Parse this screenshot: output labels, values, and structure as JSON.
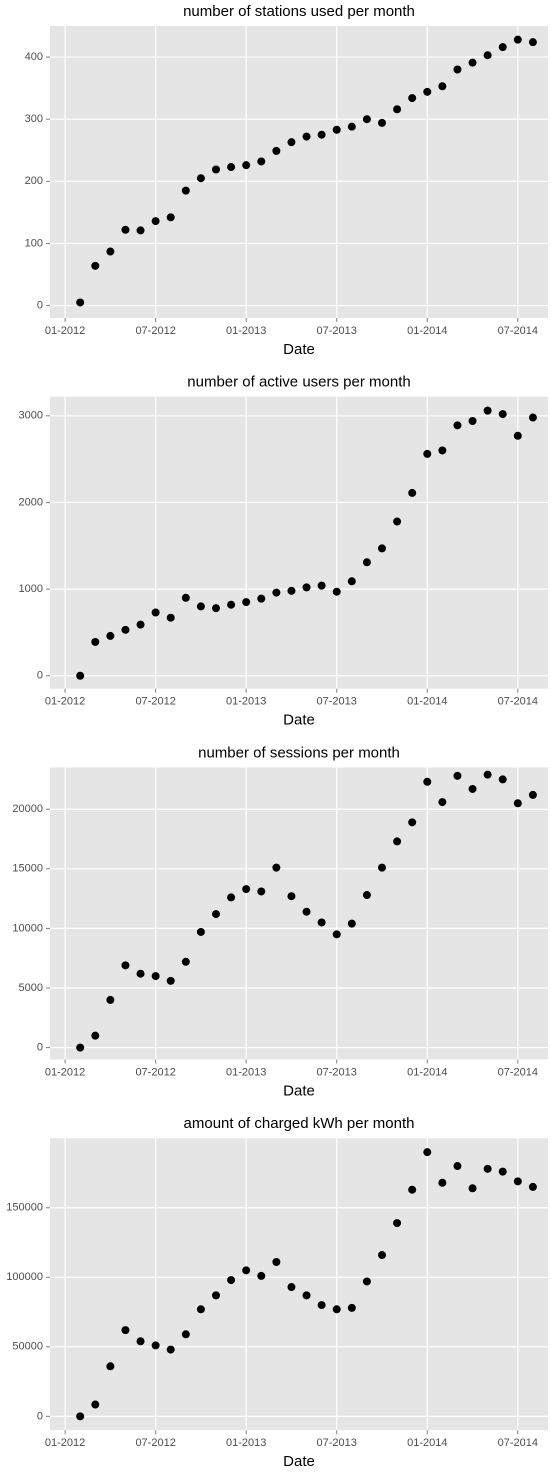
{
  "chart_data": [
    {
      "type": "scatter",
      "title": "number of stations used per month",
      "x_label": "Date",
      "x": [
        "2012-02",
        "2012-03",
        "2012-04",
        "2012-05",
        "2012-06",
        "2012-07",
        "2012-08",
        "2012-09",
        "2012-10",
        "2012-11",
        "2012-12",
        "2013-01",
        "2013-02",
        "2013-03",
        "2013-04",
        "2013-05",
        "2013-06",
        "2013-07",
        "2013-08",
        "2013-09",
        "2013-10",
        "2013-11",
        "2013-12",
        "2014-01",
        "2014-02",
        "2014-03",
        "2014-04",
        "2014-05",
        "2014-06",
        "2014-07",
        "2014-08"
      ],
      "values": [
        5,
        64,
        87,
        122,
        121,
        136,
        142,
        185,
        205,
        219,
        223,
        226,
        232,
        249,
        263,
        272,
        275,
        283,
        288,
        300,
        294,
        316,
        334,
        344,
        353,
        380,
        391,
        403,
        416,
        428,
        424
      ],
      "color": "#000000",
      "xlim": [
        "2011-12",
        "2014-09"
      ],
      "xticks": [
        {
          "value": "2012-01",
          "label": "01-2012"
        },
        {
          "value": "2012-07",
          "label": "07-2012"
        },
        {
          "value": "2013-01",
          "label": "01-2013"
        },
        {
          "value": "2013-07",
          "label": "07-2013"
        },
        {
          "value": "2014-01",
          "label": "01-2014"
        },
        {
          "value": "2014-07",
          "label": "07-2014"
        }
      ],
      "ylim": [
        -20,
        450
      ],
      "yticks": [
        0,
        100,
        200,
        300,
        400
      ],
      "grid": true
    },
    {
      "type": "scatter",
      "title": "number of active users per month",
      "x_label": "Date",
      "x": [
        "2012-02",
        "2012-03",
        "2012-04",
        "2012-05",
        "2012-06",
        "2012-07",
        "2012-08",
        "2012-09",
        "2012-10",
        "2012-11",
        "2012-12",
        "2013-01",
        "2013-02",
        "2013-03",
        "2013-04",
        "2013-05",
        "2013-06",
        "2013-07",
        "2013-08",
        "2013-09",
        "2013-10",
        "2013-11",
        "2013-12",
        "2014-01",
        "2014-02",
        "2014-03",
        "2014-04",
        "2014-05",
        "2014-06",
        "2014-07",
        "2014-08"
      ],
      "values": [
        0,
        390,
        460,
        530,
        590,
        730,
        670,
        900,
        800,
        780,
        820,
        850,
        890,
        960,
        980,
        1020,
        1040,
        970,
        1090,
        1310,
        1470,
        1780,
        2110,
        2560,
        2600,
        2890,
        2940,
        3060,
        3020,
        2770,
        2980
      ],
      "color": "#000000",
      "xlim": [
        "2011-12",
        "2014-09"
      ],
      "xticks": [
        {
          "value": "2012-01",
          "label": "01-2012"
        },
        {
          "value": "2012-07",
          "label": "07-2012"
        },
        {
          "value": "2013-01",
          "label": "01-2013"
        },
        {
          "value": "2013-07",
          "label": "07-2013"
        },
        {
          "value": "2014-01",
          "label": "01-2014"
        },
        {
          "value": "2014-07",
          "label": "07-2014"
        }
      ],
      "ylim": [
        -150,
        3220
      ],
      "yticks": [
        0,
        1000,
        2000,
        3000
      ],
      "grid": true
    },
    {
      "type": "scatter",
      "title": "number of sessions per month",
      "x_label": "Date",
      "x": [
        "2012-02",
        "2012-03",
        "2012-04",
        "2012-05",
        "2012-06",
        "2012-07",
        "2012-08",
        "2012-09",
        "2012-10",
        "2012-11",
        "2012-12",
        "2013-01",
        "2013-02",
        "2013-03",
        "2013-04",
        "2013-05",
        "2013-06",
        "2013-07",
        "2013-08",
        "2013-09",
        "2013-10",
        "2013-11",
        "2013-12",
        "2014-01",
        "2014-02",
        "2014-03",
        "2014-04",
        "2014-05",
        "2014-06",
        "2014-07",
        "2014-08"
      ],
      "values": [
        0,
        1000,
        4000,
        6900,
        6200,
        6000,
        5600,
        7200,
        9700,
        11200,
        12600,
        13300,
        13100,
        15100,
        12700,
        11400,
        10500,
        9500,
        10400,
        12800,
        15100,
        17300,
        18900,
        22300,
        20600,
        22800,
        21700,
        22900,
        22500,
        20500,
        21200
      ],
      "color": "#000000",
      "xlim": [
        "2011-12",
        "2014-09"
      ],
      "xticks": [
        {
          "value": "2012-01",
          "label": "01-2012"
        },
        {
          "value": "2012-07",
          "label": "07-2012"
        },
        {
          "value": "2013-01",
          "label": "01-2013"
        },
        {
          "value": "2013-07",
          "label": "07-2013"
        },
        {
          "value": "2014-01",
          "label": "01-2014"
        },
        {
          "value": "2014-07",
          "label": "07-2014"
        }
      ],
      "ylim": [
        -1000,
        23500
      ],
      "yticks": [
        0,
        5000,
        10000,
        15000,
        20000
      ],
      "grid": true
    },
    {
      "type": "scatter",
      "title": "amount of charged kWh per month",
      "x_label": "Date",
      "x": [
        "2012-02",
        "2012-03",
        "2012-04",
        "2012-05",
        "2012-06",
        "2012-07",
        "2012-08",
        "2012-09",
        "2012-10",
        "2012-11",
        "2012-12",
        "2013-01",
        "2013-02",
        "2013-03",
        "2013-04",
        "2013-05",
        "2013-06",
        "2013-07",
        "2013-08",
        "2013-09",
        "2013-10",
        "2013-11",
        "2013-12",
        "2014-01",
        "2014-02",
        "2014-03",
        "2014-04",
        "2014-05",
        "2014-06",
        "2014-07",
        "2014-08"
      ],
      "values": [
        0,
        8500,
        36000,
        62000,
        54000,
        51000,
        48000,
        59000,
        77000,
        87000,
        98000,
        105000,
        101000,
        111000,
        93000,
        87000,
        80000,
        77000,
        78000,
        97000,
        116000,
        139000,
        163000,
        190000,
        168000,
        180000,
        164000,
        178000,
        176000,
        169000,
        165000
      ],
      "color": "#000000",
      "xlim": [
        "2011-12",
        "2014-09"
      ],
      "xticks": [
        {
          "value": "2012-01",
          "label": "01-2012"
        },
        {
          "value": "2012-07",
          "label": "07-2012"
        },
        {
          "value": "2013-01",
          "label": "01-2013"
        },
        {
          "value": "2013-07",
          "label": "07-2013"
        },
        {
          "value": "2014-01",
          "label": "01-2014"
        },
        {
          "value": "2014-07",
          "label": "07-2014"
        }
      ],
      "ylim": [
        -10000,
        200000
      ],
      "yticks": [
        0,
        50000,
        100000,
        150000
      ],
      "grid": true
    }
  ]
}
